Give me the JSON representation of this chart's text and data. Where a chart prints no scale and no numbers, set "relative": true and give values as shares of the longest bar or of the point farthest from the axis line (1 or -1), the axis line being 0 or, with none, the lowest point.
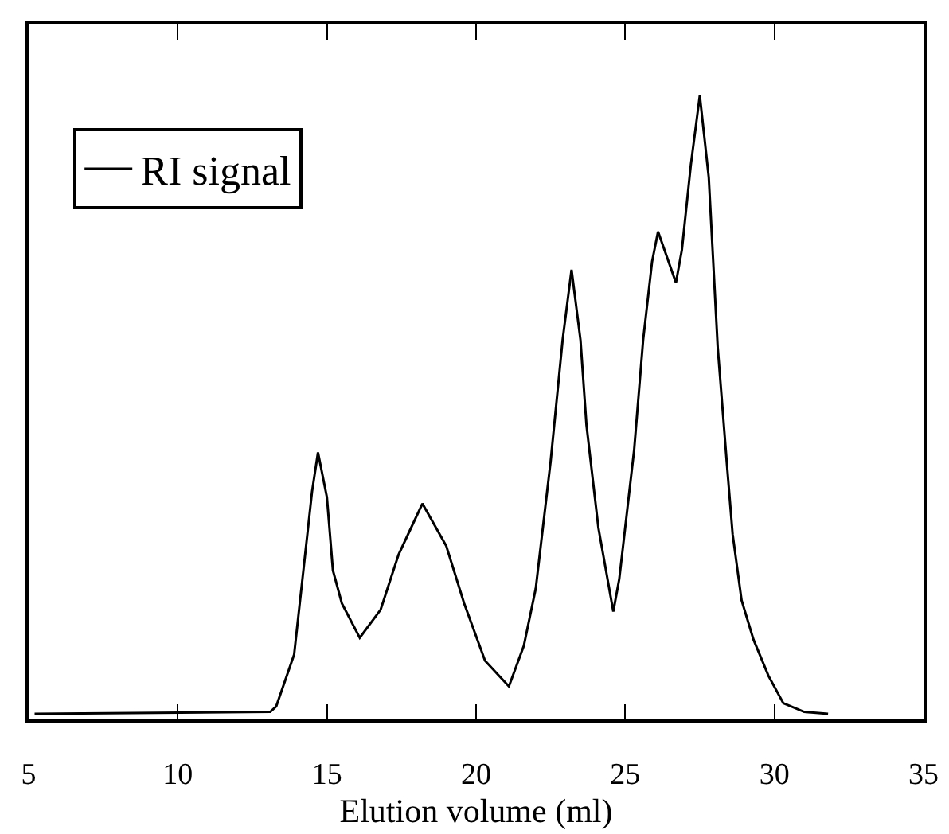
{
  "chart_data": {
    "type": "line",
    "relative": true,
    "xlabel": "Elution volume (ml)",
    "xlim": [
      5,
      35
    ],
    "xticks": [
      5,
      10,
      15,
      20,
      25,
      30,
      35
    ],
    "legend": "top left",
    "grid": false,
    "marker": "none",
    "line_style": "solid",
    "series": [
      {
        "name": "RI signal",
        "color": "#000000",
        "x": [
          5.2,
          13.1,
          13.3,
          13.9,
          14.5,
          14.7,
          15.0,
          15.2,
          15.5,
          16.1,
          16.8,
          17.4,
          18.2,
          19.0,
          19.6,
          20.3,
          21.1,
          21.6,
          22.0,
          22.5,
          22.9,
          23.2,
          23.5,
          23.7,
          24.1,
          24.6,
          24.8,
          25.3,
          25.6,
          25.9,
          26.1,
          26.7,
          26.9,
          27.2,
          27.5,
          27.8,
          28.1,
          28.4,
          28.6,
          28.9,
          29.3,
          29.8,
          30.3,
          31.0,
          31.8
        ],
        "values": [
          0.009,
          0.012,
          0.021,
          0.104,
          0.365,
          0.428,
          0.356,
          0.239,
          0.186,
          0.131,
          0.176,
          0.264,
          0.346,
          0.278,
          0.186,
          0.094,
          0.053,
          0.118,
          0.21,
          0.414,
          0.608,
          0.721,
          0.608,
          0.472,
          0.307,
          0.173,
          0.225,
          0.433,
          0.608,
          0.734,
          0.782,
          0.7,
          0.753,
          0.889,
          1.0,
          0.869,
          0.597,
          0.414,
          0.297,
          0.191,
          0.128,
          0.07,
          0.026,
          0.012,
          0.009
        ]
      }
    ]
  }
}
